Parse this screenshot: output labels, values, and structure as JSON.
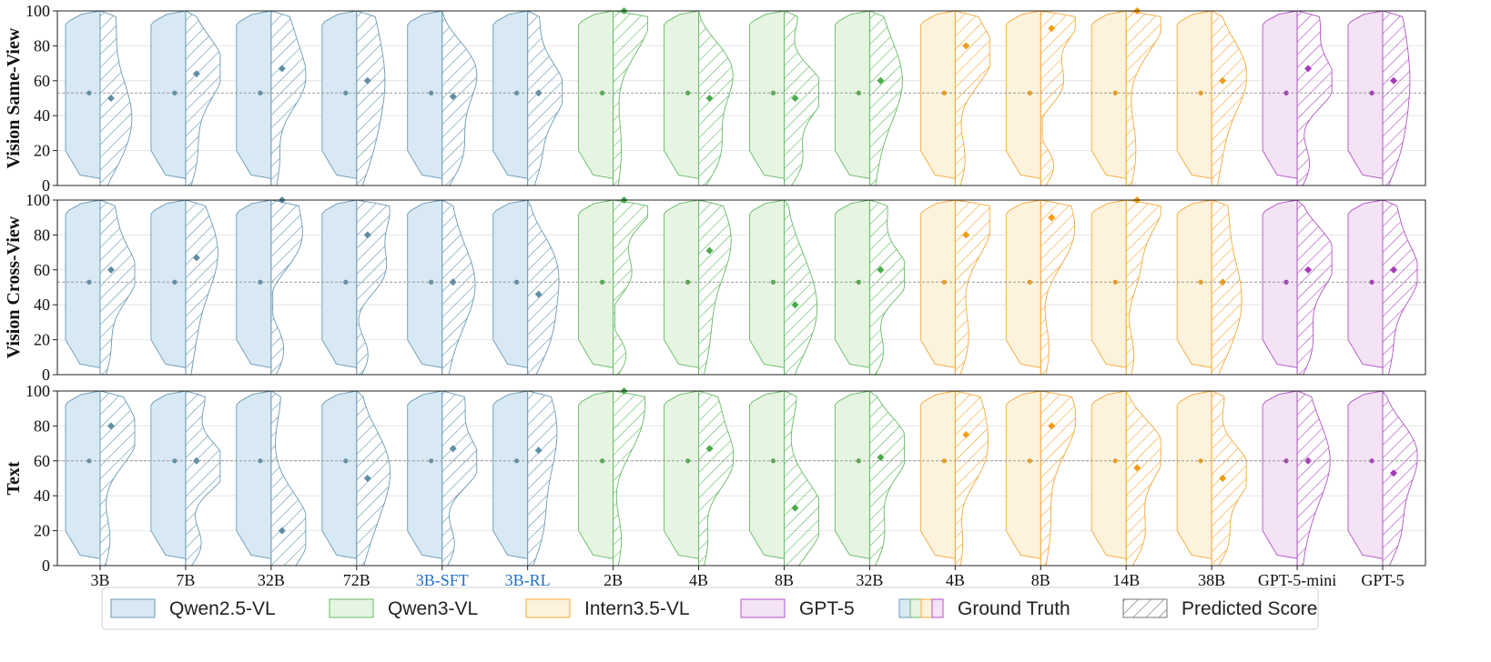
{
  "chart_data": {
    "type": "violin",
    "panels": [
      {
        "ylabel": "Vision Same-View",
        "ylim": [
          0,
          100
        ],
        "yticks": [
          0,
          20,
          40,
          60,
          80,
          100
        ],
        "gt_mean": 53,
        "pred": [
          50,
          64,
          67,
          60,
          51,
          53,
          100,
          50,
          50,
          60,
          80,
          90,
          100,
          60,
          67,
          60
        ]
      },
      {
        "ylabel": "Vision Cross-View",
        "ylim": [
          0,
          100
        ],
        "yticks": [
          0,
          20,
          40,
          60,
          80,
          100
        ],
        "gt_mean": 53,
        "pred": [
          60,
          67,
          100,
          80,
          53,
          46,
          100,
          71,
          40,
          60,
          80,
          90,
          100,
          53,
          60,
          60
        ]
      },
      {
        "ylabel": "Text",
        "ylim": [
          0,
          100
        ],
        "yticks": [
          0,
          20,
          40,
          60,
          80,
          100
        ],
        "gt_mean": 60,
        "pred": [
          80,
          60,
          20,
          50,
          67,
          66,
          100,
          67,
          33,
          62,
          75,
          80,
          56,
          50,
          60,
          53
        ]
      }
    ],
    "models": [
      {
        "label": "3B",
        "family": "Qwen2.5-VL",
        "highlight": false
      },
      {
        "label": "7B",
        "family": "Qwen2.5-VL",
        "highlight": false
      },
      {
        "label": "32B",
        "family": "Qwen2.5-VL",
        "highlight": false
      },
      {
        "label": "72B",
        "family": "Qwen2.5-VL",
        "highlight": false
      },
      {
        "label": "3B-SFT",
        "family": "Qwen2.5-VL",
        "highlight": true
      },
      {
        "label": "3B-RL",
        "family": "Qwen2.5-VL",
        "highlight": true
      },
      {
        "label": "2B",
        "family": "Qwen3-VL",
        "highlight": false
      },
      {
        "label": "4B",
        "family": "Qwen3-VL",
        "highlight": false
      },
      {
        "label": "8B",
        "family": "Qwen3-VL",
        "highlight": false
      },
      {
        "label": "32B",
        "family": "Qwen3-VL",
        "highlight": false
      },
      {
        "label": "4B",
        "family": "Intern3.5-VL",
        "highlight": false
      },
      {
        "label": "8B",
        "family": "Intern3.5-VL",
        "highlight": false
      },
      {
        "label": "14B",
        "family": "Intern3.5-VL",
        "highlight": false
      },
      {
        "label": "38B",
        "family": "Intern3.5-VL",
        "highlight": false
      },
      {
        "label": "GPT-5-mini",
        "family": "GPT-5",
        "highlight": false
      },
      {
        "label": "GPT-5",
        "family": "GPT-5",
        "highlight": false
      }
    ],
    "families": {
      "Qwen2.5-VL": {
        "fill": "#d8e9f4",
        "stroke": "#6a9ab4",
        "dot": "#5f8da3"
      },
      "Qwen3-VL": {
        "fill": "#e6f4e2",
        "stroke": "#66bb66",
        "dot": "#4aaa4a"
      },
      "Intern3.5-VL": {
        "fill": "#fdf2dc",
        "stroke": "#f5a93a",
        "dot": "#f39c12"
      },
      "GPT-5": {
        "fill": "#f3e3f5",
        "stroke": "#b153c4",
        "dot": "#a23bb5"
      }
    },
    "highlight_color": "#1f6fc5",
    "legend": [
      {
        "label": "Qwen2.5-VL",
        "kind": "family",
        "family": "Qwen2.5-VL"
      },
      {
        "label": "Qwen3-VL",
        "kind": "family",
        "family": "Qwen3-VL"
      },
      {
        "label": "Intern3.5-VL",
        "kind": "family",
        "family": "Intern3.5-VL"
      },
      {
        "label": "GPT-5",
        "kind": "family",
        "family": "GPT-5"
      },
      {
        "label": "Ground Truth",
        "kind": "gt"
      },
      {
        "label": "Predicted Score",
        "kind": "pred"
      }
    ],
    "grid": true,
    "legend_position": "bottom"
  }
}
